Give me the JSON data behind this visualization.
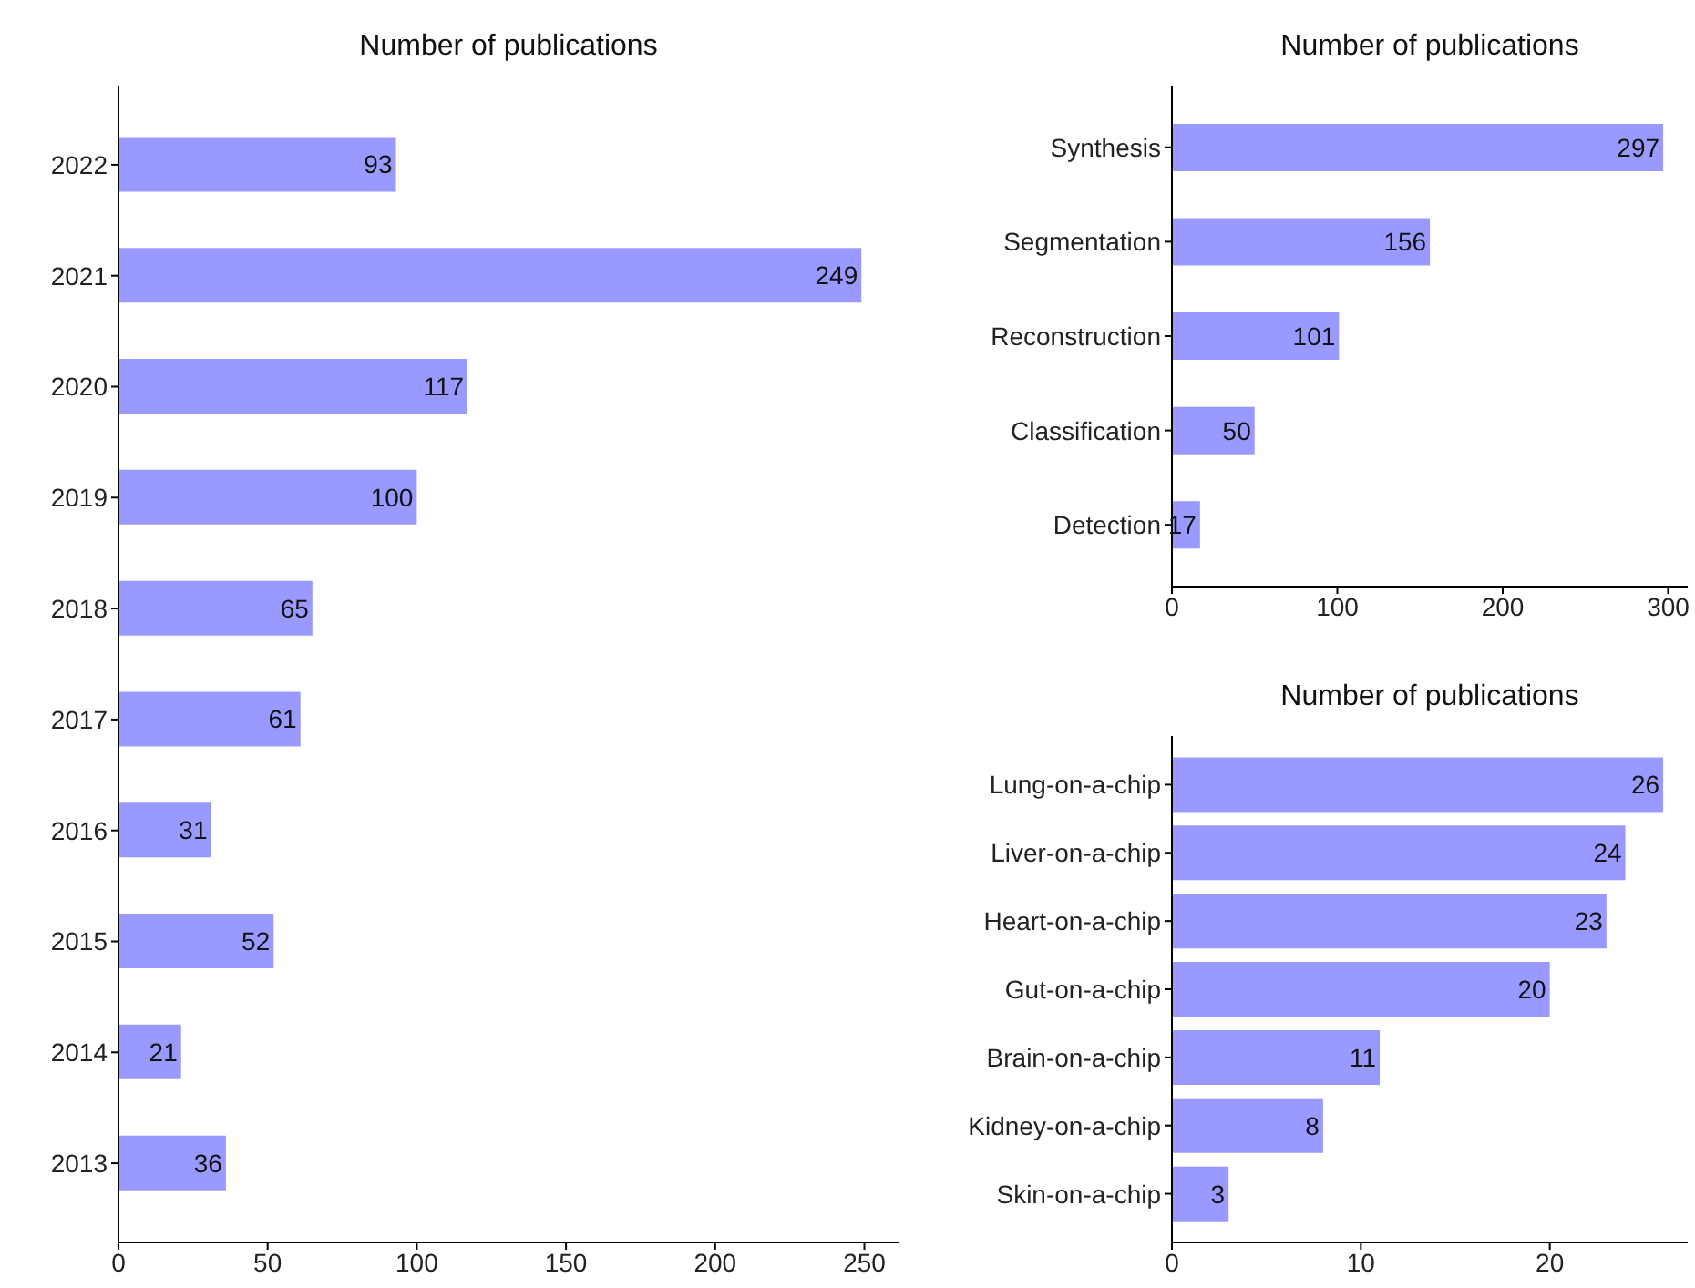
{
  "chart_data": [
    {
      "type": "bar",
      "orientation": "horizontal",
      "title": "Number of publications",
      "categories": [
        "2022",
        "2021",
        "2020",
        "2019",
        "2018",
        "2017",
        "2016",
        "2015",
        "2014",
        "2013"
      ],
      "values": [
        93,
        249,
        117,
        100,
        65,
        61,
        31,
        52,
        21,
        36
      ],
      "color": "#9999ff",
      "xlim": [
        0,
        261.45
      ],
      "xticks": [
        0,
        50,
        100,
        150,
        200,
        250
      ],
      "data_labels": true,
      "grid": false
    },
    {
      "type": "bar",
      "orientation": "horizontal",
      "title": "Number of publications",
      "categories": [
        "Synthesis",
        "Segmentation",
        "Reconstruction",
        "Classification",
        "Detection"
      ],
      "values": [
        297,
        156,
        101,
        50,
        17
      ],
      "color": "#9999ff",
      "xlim": [
        0,
        311.85
      ],
      "xticks": [
        0,
        100,
        200,
        300
      ],
      "data_labels": true,
      "grid": false
    },
    {
      "type": "bar",
      "orientation": "horizontal",
      "title": "Number of publications",
      "categories": [
        "Lung-on-a-chip",
        "Liver-on-a-chip",
        "Heart-on-a-chip",
        "Gut-on-a-chip",
        "Brain-on-a-chip",
        "Kidney-on-a-chip",
        "Skin-on-a-chip"
      ],
      "values": [
        26,
        24,
        23,
        20,
        11,
        8,
        3
      ],
      "color": "#9999ff",
      "xlim": [
        0,
        27.3
      ],
      "xticks": [
        0,
        10,
        20
      ],
      "data_labels": true,
      "grid": false
    }
  ]
}
